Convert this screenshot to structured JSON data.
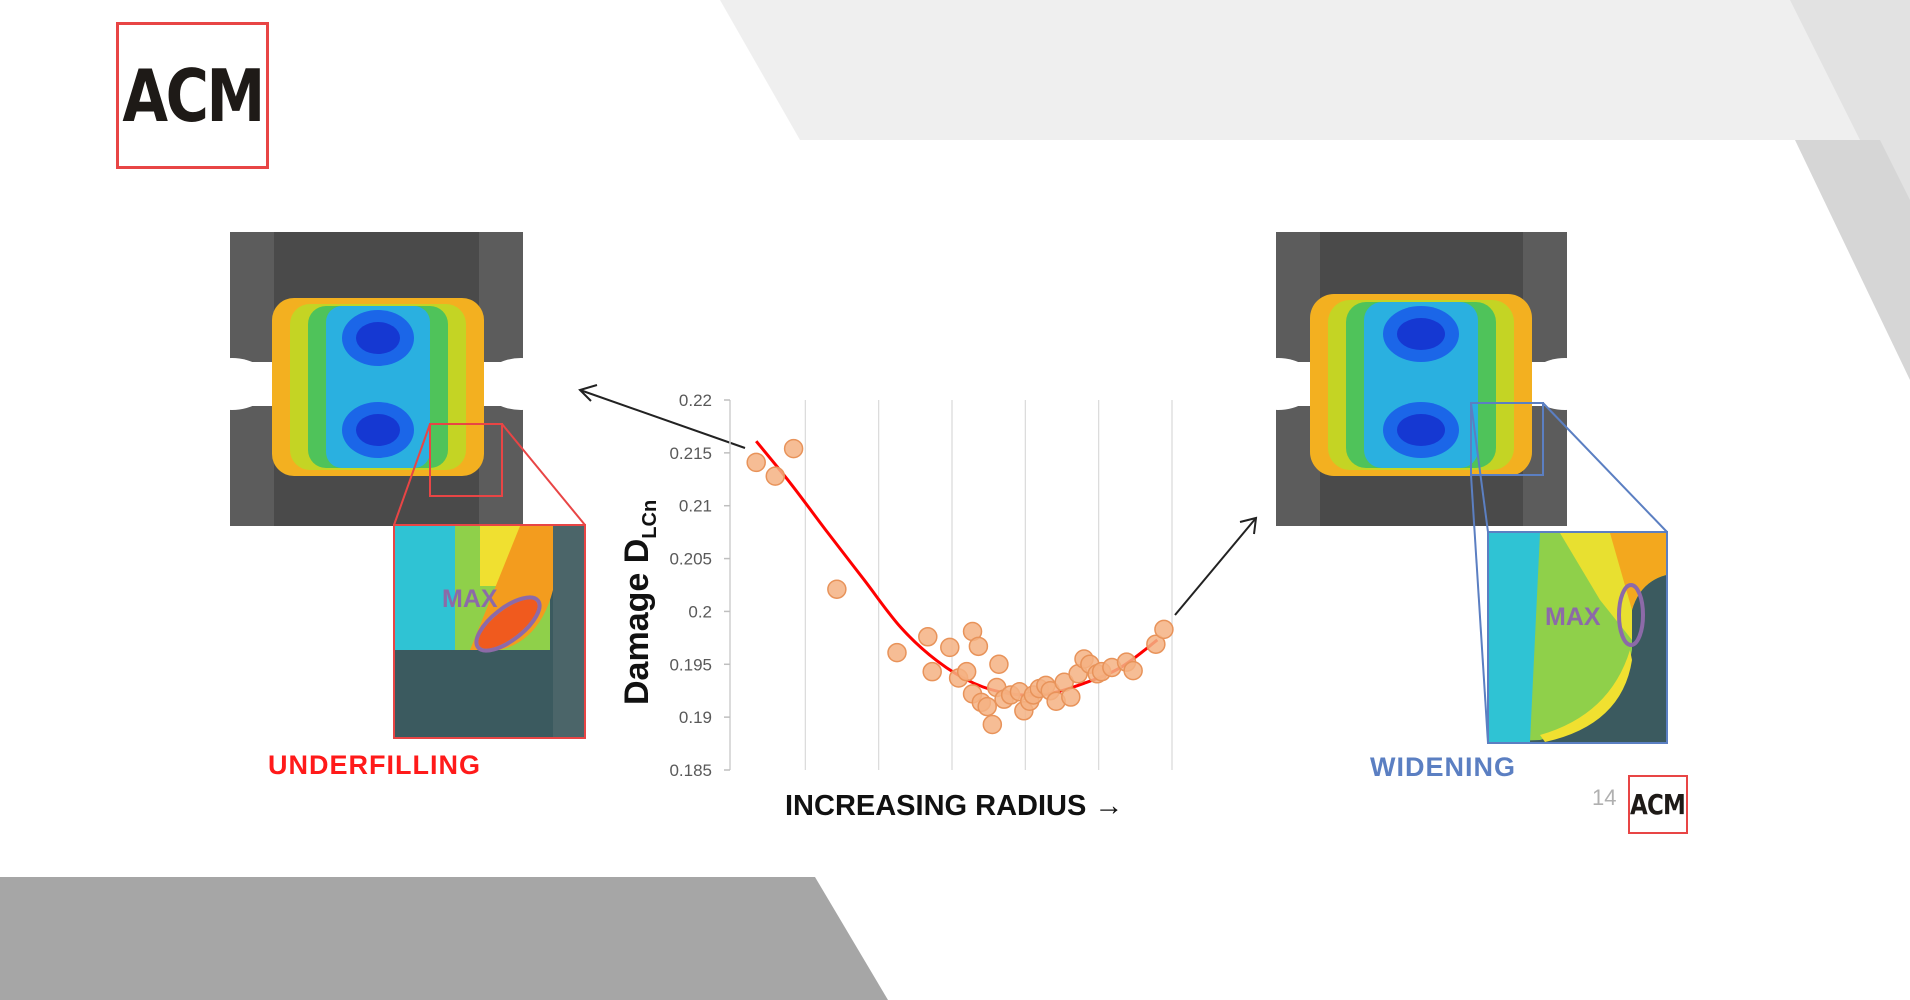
{
  "logo": {
    "text": "ACM"
  },
  "page_number": "14",
  "captions": {
    "left": "UNDERFILLING",
    "right": "WIDENING"
  },
  "max_labels": {
    "left": "MAX",
    "right": "MAX"
  },
  "colors": {
    "accent_red": "#ff1a1a",
    "accent_blue": "#5b7fc2",
    "point_fill": "#f4b183",
    "point_stroke": "#e8935a",
    "fit_line": "#ff0000",
    "max_ellipse": "#8c6aa8"
  },
  "chart_data": {
    "type": "scatter",
    "title": "",
    "ylabel_main": "Damage D",
    "ylabel_sub": "LCn",
    "xlabel": "INCREASING RADIUS →",
    "ylim": [
      0.185,
      0.22
    ],
    "yticks": [
      "0.22",
      "0.215",
      "0.21",
      "0.205",
      "0.2",
      "0.195",
      "0.19",
      "0.185"
    ],
    "xlim": [
      0,
      6
    ],
    "grid": {
      "horizontal": false,
      "vertical": true,
      "vertical_count": 6
    },
    "points": [
      [
        0.33,
        0.2141
      ],
      [
        0.59,
        0.2128
      ],
      [
        0.84,
        0.2154
      ],
      [
        1.43,
        0.2021
      ],
      [
        2.25,
        0.1961
      ],
      [
        2.73,
        0.1943
      ],
      [
        2.67,
        0.1976
      ],
      [
        2.97,
        0.1966
      ],
      [
        3.09,
        0.1937
      ],
      [
        3.2,
        0.1943
      ],
      [
        3.28,
        0.1922
      ],
      [
        3.28,
        0.1981
      ],
      [
        3.36,
        0.1967
      ],
      [
        3.4,
        0.1914
      ],
      [
        3.48,
        0.191
      ],
      [
        3.55,
        0.1893
      ],
      [
        3.61,
        0.1928
      ],
      [
        3.64,
        0.195
      ],
      [
        3.71,
        0.1917
      ],
      [
        3.8,
        0.1921
      ],
      [
        3.92,
        0.1924
      ],
      [
        3.98,
        0.1906
      ],
      [
        4.06,
        0.1915
      ],
      [
        4.11,
        0.1921
      ],
      [
        4.19,
        0.1927
      ],
      [
        4.28,
        0.193
      ],
      [
        4.34,
        0.1925
      ],
      [
        4.42,
        0.1915
      ],
      [
        4.53,
        0.1933
      ],
      [
        4.62,
        0.1919
      ],
      [
        4.72,
        0.1941
      ],
      [
        4.8,
        0.1955
      ],
      [
        4.88,
        0.195
      ],
      [
        4.98,
        0.1941
      ],
      [
        5.04,
        0.1943
      ],
      [
        5.18,
        0.1947
      ],
      [
        5.38,
        0.1952
      ],
      [
        5.47,
        0.1944
      ],
      [
        5.78,
        0.1969
      ],
      [
        5.89,
        0.1983
      ]
    ],
    "fit_line": [
      [
        0.33,
        0.2161
      ],
      [
        0.8,
        0.2121
      ],
      [
        1.3,
        0.2075
      ],
      [
        1.8,
        0.203
      ],
      [
        2.3,
        0.1985
      ],
      [
        2.8,
        0.1953
      ],
      [
        3.3,
        0.1932
      ],
      [
        3.8,
        0.1922
      ],
      [
        4.3,
        0.1922
      ],
      [
        4.8,
        0.1932
      ],
      [
        5.3,
        0.1947
      ],
      [
        5.8,
        0.1973
      ]
    ]
  }
}
